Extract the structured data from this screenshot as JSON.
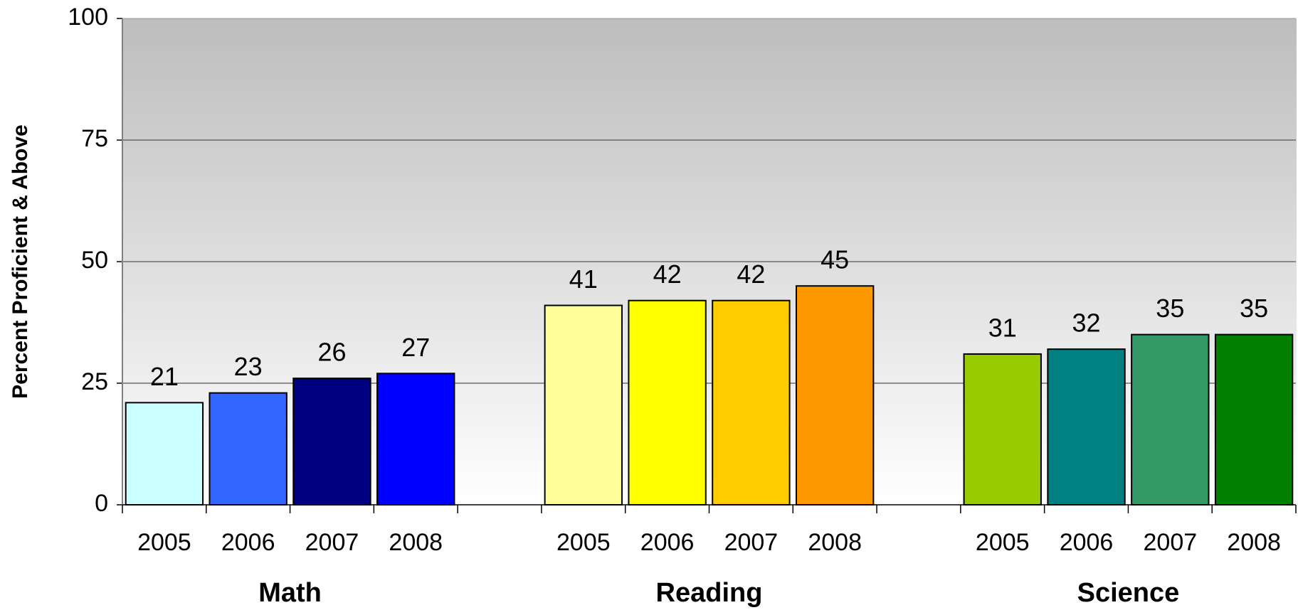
{
  "chart_data": {
    "type": "bar",
    "y_label": "Percent Proficient & Above",
    "ylim": [
      0,
      100
    ],
    "yticks": [
      0,
      25,
      50,
      75,
      100
    ],
    "grid": true,
    "groups": [
      {
        "name": "Math",
        "categories": [
          "2005",
          "2006",
          "2007",
          "2008"
        ],
        "values": [
          21,
          23,
          26,
          27
        ],
        "colors": [
          "#ccffff",
          "#3366ff",
          "#000080",
          "#0000ff"
        ]
      },
      {
        "name": "Reading",
        "categories": [
          "2005",
          "2006",
          "2007",
          "2008"
        ],
        "values": [
          41,
          42,
          42,
          45
        ],
        "colors": [
          "#ffff99",
          "#ffff00",
          "#ffcc00",
          "#ff9900"
        ]
      },
      {
        "name": "Science",
        "categories": [
          "2005",
          "2006",
          "2007",
          "2008"
        ],
        "values": [
          31,
          32,
          35,
          35
        ],
        "colors": [
          "#99cc00",
          "#008080",
          "#339966",
          "#008000"
        ]
      }
    ]
  }
}
